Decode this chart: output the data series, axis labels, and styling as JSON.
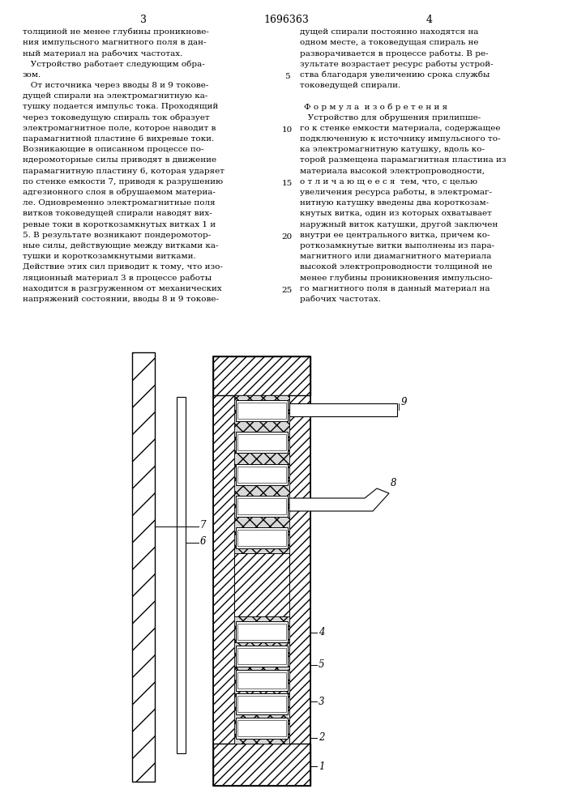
{
  "page_number_left": "3",
  "page_number_center": "1696363",
  "page_number_right": "4",
  "text_left_col": [
    "толщиной не менее глубины проникнове-",
    "ния импульсного магнитного поля в дан-",
    "ный материал на рабочих частотах.",
    "   Устройство работает следующим обра-",
    "зом.",
    "   От источника через вводы 8 и 9 токове-",
    "дущей спирали на электромагнитную ка-",
    "тушку подается импульс тока. Проходящий",
    "через токоведущую спираль ток образует",
    "электромагнитное поле, которое наводит в",
    "парамагнитной пластине 6 вихревые токи.",
    "Возникающие в описанном процессе по-",
    "ндеромоторные силы приводят в движение",
    "парамагнитную пластину 6, которая ударяет",
    "по стенке емкости 7, приводя к разрушению",
    "адгезионного слоя в обрушаемом материа-",
    "ле. Одновременно электромагнитные поля",
    "витков токоведущей спирали наводят вих-",
    "ревые токи в короткозамкнутых витках 1 и",
    "5. В результате возникают пондеромотор-",
    "ные силы, действующие между витками ка-",
    "тушки и короткозамкнутыми витками.",
    "Действие этих сил приводит к тому, что изо-",
    "ляционный материал 3 в процессе работы",
    "находится в разгруженном от механических",
    "напряжений состоянии, вводы 8 и 9 токове-"
  ],
  "text_right_col": [
    "дущей спирали постоянно находятся на",
    "одном месте, а токоведущая спираль не",
    "разворачивается в процессе работы. В ре-",
    "зультате возрастает ресурс работы устрой-",
    "ства благодаря увеличению срока службы",
    "токоведущей спирали.",
    "",
    "Ф о р м у л а  и з о б р е т е н и я",
    "   Устройство для обрушения прилипше-",
    "го к стенке емкости материала, содержащее",
    "подключенную к источнику импульсного то-",
    "ка электромагнитную катушку, вдоль ко-",
    "торой размещена парамагнитная пластина из",
    "материала высокой электропроводности,",
    "о т л и ч а ю щ е е с я  тем, что, с целью",
    "увеличения ресурса работы, в электромаг-",
    "нитную катушку введены два короткозам-",
    "кнутых витка, один из которых охватывает",
    "наружный виток катушки, другой заключен",
    "внутри ее центрального витка, причем ко-",
    "роткозамкнутые витки выполнены из пара-",
    "магнитного или диамагнитного материала",
    "высокой электропроводности толщиной не",
    "менее глубины проникновения импульсно-",
    "го магнитного поля в данный материал на",
    "рабочих частотах."
  ],
  "bg_color": "#ffffff"
}
